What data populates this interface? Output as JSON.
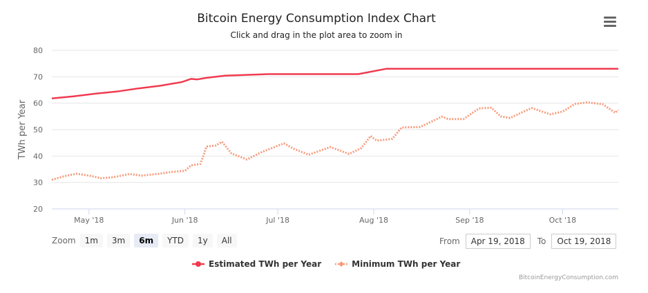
{
  "header": {
    "title": "Bitcoin Energy Consumption Index Chart",
    "subtitle": "Click and drag in the plot area to zoom in",
    "menu_icon": "hamburger-menu-icon"
  },
  "range_selector": {
    "zoom_label": "Zoom",
    "buttons": [
      "1m",
      "3m",
      "6m",
      "YTD",
      "1y",
      "All"
    ],
    "selected": "6m",
    "from_label": "From",
    "from_value": "Apr 19, 2018",
    "to_label": "To",
    "to_value": "Oct 19, 2018"
  },
  "credit": "BitcoinEnergyConsumption.com",
  "colors": {
    "estimated": "#f03a4f",
    "minimum": "#f79b7c",
    "grid": "#e6e6e6",
    "axis": "#ccd6eb"
  },
  "chart_data": {
    "type": "line",
    "title": "Bitcoin Energy Consumption Index Chart",
    "subtitle": "Click and drag in the plot area to zoom in",
    "xlabel": "",
    "ylabel": "TWh per Year",
    "ylim": [
      20,
      80
    ],
    "yticks": [
      20,
      30,
      40,
      50,
      60,
      70,
      80
    ],
    "xlim": [
      "2018-04-19",
      "2018-10-19"
    ],
    "xticks": [
      {
        "date": "2018-05-01",
        "label": "May '18"
      },
      {
        "date": "2018-06-01",
        "label": "Jun '18"
      },
      {
        "date": "2018-07-01",
        "label": "Jul '18"
      },
      {
        "date": "2018-08-01",
        "label": "Aug '18"
      },
      {
        "date": "2018-09-01",
        "label": "Sep '18"
      },
      {
        "date": "2018-10-01",
        "label": "Oct '18"
      }
    ],
    "grid": true,
    "legend_position": "bottom-center",
    "series": [
      {
        "name": "Estimated TWh per Year",
        "style": "solid",
        "points": [
          [
            "2018-04-19",
            61.8
          ],
          [
            "2018-04-26",
            62.6
          ],
          [
            "2018-05-03",
            63.6
          ],
          [
            "2018-05-10",
            64.4
          ],
          [
            "2018-05-17",
            65.6
          ],
          [
            "2018-05-24",
            66.6
          ],
          [
            "2018-05-31",
            68.0
          ],
          [
            "2018-06-03",
            69.2
          ],
          [
            "2018-06-05",
            69.0
          ],
          [
            "2018-06-08",
            69.6
          ],
          [
            "2018-06-14",
            70.4
          ],
          [
            "2018-06-28",
            71.0
          ],
          [
            "2018-07-15",
            71.0
          ],
          [
            "2018-07-22",
            71.0
          ],
          [
            "2018-07-27",
            71.0
          ],
          [
            "2018-08-05",
            73.0
          ],
          [
            "2018-08-20",
            73.0
          ],
          [
            "2018-09-10",
            73.0
          ],
          [
            "2018-10-01",
            73.0
          ],
          [
            "2018-10-19",
            73.0
          ]
        ]
      },
      {
        "name": "Minimum TWh per Year",
        "style": "dotted",
        "points": [
          [
            "2018-04-19",
            31.0
          ],
          [
            "2018-04-23",
            32.4
          ],
          [
            "2018-04-27",
            33.3
          ],
          [
            "2018-05-01",
            32.6
          ],
          [
            "2018-05-05",
            31.6
          ],
          [
            "2018-05-09",
            32.0
          ],
          [
            "2018-05-14",
            33.2
          ],
          [
            "2018-05-18",
            32.6
          ],
          [
            "2018-05-23",
            33.2
          ],
          [
            "2018-05-28",
            34.0
          ],
          [
            "2018-06-01",
            34.4
          ],
          [
            "2018-06-03",
            36.5
          ],
          [
            "2018-06-06",
            37.0
          ],
          [
            "2018-06-08",
            43.6
          ],
          [
            "2018-06-11",
            44.0
          ],
          [
            "2018-06-13",
            45.4
          ],
          [
            "2018-06-16",
            41.0
          ],
          [
            "2018-06-21",
            38.7
          ],
          [
            "2018-06-26",
            41.6
          ],
          [
            "2018-07-03",
            44.8
          ],
          [
            "2018-07-06",
            42.8
          ],
          [
            "2018-07-11",
            40.5
          ],
          [
            "2018-07-18",
            43.4
          ],
          [
            "2018-07-24",
            40.8
          ],
          [
            "2018-07-28",
            43.0
          ],
          [
            "2018-07-31",
            47.6
          ],
          [
            "2018-08-02",
            45.8
          ],
          [
            "2018-08-07",
            46.5
          ],
          [
            "2018-08-10",
            50.8
          ],
          [
            "2018-08-16",
            51.0
          ],
          [
            "2018-08-23",
            54.9
          ],
          [
            "2018-08-25",
            54.0
          ],
          [
            "2018-08-30",
            54.0
          ],
          [
            "2018-09-04",
            58.0
          ],
          [
            "2018-09-08",
            58.3
          ],
          [
            "2018-09-11",
            55.0
          ],
          [
            "2018-09-14",
            54.4
          ],
          [
            "2018-09-21",
            58.2
          ],
          [
            "2018-09-27",
            55.8
          ],
          [
            "2018-10-01",
            56.8
          ],
          [
            "2018-10-05",
            59.7
          ],
          [
            "2018-10-09",
            60.3
          ],
          [
            "2018-10-14",
            59.6
          ],
          [
            "2018-10-18",
            56.4
          ],
          [
            "2018-10-19",
            57.4
          ]
        ]
      }
    ]
  }
}
